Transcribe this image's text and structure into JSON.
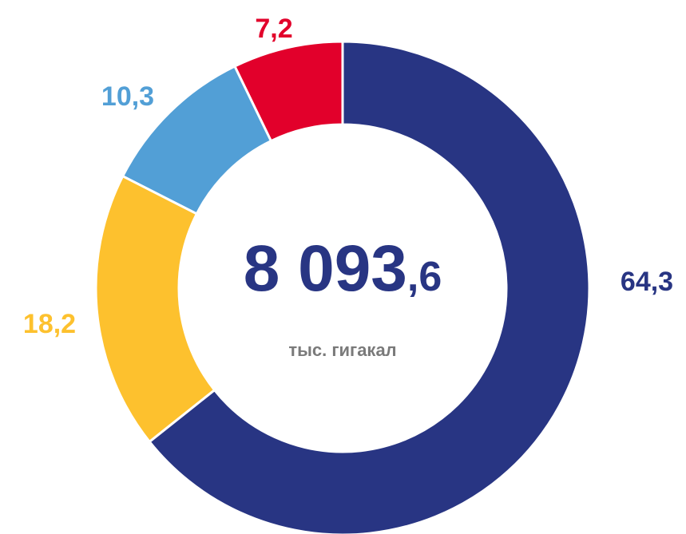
{
  "chart_data": {
    "type": "donut",
    "center_value": "8 093",
    "center_value_fraction": ",6",
    "center_unit": "тыс. гигакал",
    "categories": [
      null,
      null,
      null,
      null
    ],
    "values": [
      64.3,
      18.2,
      10.3,
      7.2
    ],
    "value_labels": [
      "64,3",
      "18,2",
      "10,3",
      "7,2"
    ],
    "colors": [
      "#283583",
      "#fdc12e",
      "#529fd6",
      "#e2002b"
    ]
  }
}
